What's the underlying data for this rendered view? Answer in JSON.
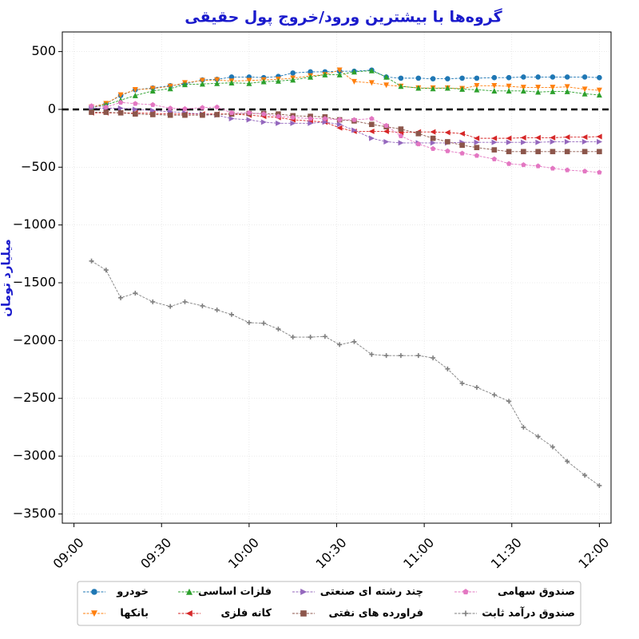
{
  "chart_data": {
    "type": "line",
    "title": "گروه‌ها با بیشترین ورود/خروج پول حقیقی",
    "y_label": "میلیارد تومان",
    "x": [
      "09:06",
      "09:11",
      "09:16",
      "09:21",
      "09:27",
      "09:33",
      "09:38",
      "09:44",
      "09:49",
      "09:54",
      "10:00",
      "10:05",
      "10:10",
      "10:15",
      "10:21",
      "10:26",
      "10:31",
      "10:36",
      "10:42",
      "10:47",
      "10:52",
      "10:58",
      "11:03",
      "11:08",
      "11:13",
      "11:18",
      "11:24",
      "11:29",
      "11:34",
      "11:39",
      "11:44",
      "11:49",
      "11:55",
      "12:00"
    ],
    "xlim": [
      "08:56",
      "12:04"
    ],
    "xticks": [
      "09:00",
      "09:30",
      "10:00",
      "10:30",
      "11:00",
      "11:30",
      "12:00"
    ],
    "ylim": [
      -3580,
      670
    ],
    "yticks": [
      {
        "value": -3500,
        "label": "−3500"
      },
      {
        "value": -3000,
        "label": "−3000"
      },
      {
        "value": -2500,
        "label": "−2500"
      },
      {
        "value": -2000,
        "label": "−2000"
      },
      {
        "value": -1500,
        "label": "−1500"
      },
      {
        "value": -1000,
        "label": "−1000"
      },
      {
        "value": -500,
        "label": "−500"
      },
      0,
      500
    ],
    "grid": true,
    "hline": 0,
    "legend": "lower center",
    "series": [
      {
        "name": "خودرو",
        "color": "#1f77b4",
        "marker": "circle",
        "values": [
          20,
          50,
          120,
          170,
          185,
          205,
          220,
          255,
          260,
          280,
          280,
          275,
          285,
          315,
          325,
          325,
          330,
          330,
          340,
          280,
          270,
          270,
          265,
          265,
          270,
          270,
          275,
          275,
          280,
          280,
          280,
          280,
          280,
          275
        ]
      },
      {
        "name": "بانکها",
        "color": "#ff7f0e",
        "marker": "triangle-down",
        "values": [
          20,
          50,
          125,
          170,
          180,
          200,
          230,
          250,
          255,
          245,
          250,
          255,
          260,
          270,
          290,
          300,
          340,
          240,
          230,
          210,
          200,
          185,
          185,
          185,
          180,
          205,
          205,
          200,
          190,
          190,
          190,
          195,
          175,
          165
        ]
      },
      {
        "name": "فلزات اساسی",
        "color": "#2ca02c",
        "marker": "triangle-up",
        "values": [
          15,
          40,
          80,
          120,
          160,
          180,
          215,
          220,
          225,
          230,
          225,
          240,
          245,
          255,
          280,
          300,
          300,
          325,
          335,
          280,
          200,
          185,
          180,
          185,
          175,
          170,
          160,
          160,
          160,
          150,
          155,
          155,
          135,
          125
        ]
      },
      {
        "name": "کانه فلزی",
        "color": "#d62728",
        "marker": "triangle-left",
        "values": [
          -30,
          -30,
          -30,
          -30,
          -35,
          -40,
          -40,
          -40,
          -40,
          -40,
          -50,
          -60,
          -70,
          -90,
          -100,
          -110,
          -160,
          -190,
          -190,
          -190,
          -200,
          -195,
          -195,
          -200,
          -210,
          -250,
          -250,
          -250,
          -245,
          -245,
          -245,
          -240,
          -240,
          -235
        ]
      },
      {
        "name": "چند رشته ای صنعتی",
        "color": "#9467bd",
        "marker": "triangle-right",
        "values": [
          10,
          10,
          10,
          0,
          -10,
          -20,
          -30,
          -40,
          -50,
          -80,
          -90,
          -110,
          -120,
          -120,
          -120,
          -110,
          -130,
          -180,
          -250,
          -280,
          -290,
          -290,
          -290,
          -290,
          -285,
          -285,
          -285,
          -285,
          -285,
          -285,
          -280,
          -280,
          -280,
          -280
        ]
      },
      {
        "name": "فراورده های نفتی",
        "color": "#8c564b",
        "marker": "square",
        "values": [
          -25,
          -25,
          -30,
          -40,
          -45,
          -50,
          -50,
          -50,
          -45,
          -40,
          -35,
          -35,
          -40,
          -55,
          -60,
          -65,
          -90,
          -100,
          -130,
          -150,
          -170,
          -210,
          -250,
          -280,
          -310,
          -330,
          -350,
          -365,
          -365,
          -365,
          -365,
          -365,
          -365,
          -365
        ]
      },
      {
        "name": "صندوق سهامی",
        "color": "#e377c2",
        "marker": "pentagon",
        "values": [
          30,
          20,
          60,
          50,
          40,
          10,
          5,
          15,
          20,
          -30,
          -30,
          -40,
          -60,
          -70,
          -80,
          -80,
          -90,
          -90,
          -80,
          -140,
          -230,
          -300,
          -340,
          -360,
          -380,
          -400,
          -430,
          -470,
          -480,
          -490,
          -510,
          -525,
          -535,
          -545
        ]
      },
      {
        "name": "صندوق درآمد ثابت",
        "color": "#7f7f7f",
        "marker": "plus",
        "values": [
          -1312,
          -1390,
          -1630,
          -1590,
          -1665,
          -1705,
          -1665,
          -1700,
          -1735,
          -1775,
          -1845,
          -1850,
          -1900,
          -1970,
          -1970,
          -1965,
          -2035,
          -2010,
          -2120,
          -2130,
          -2130,
          -2130,
          -2150,
          -2245,
          -2370,
          -2405,
          -2470,
          -2525,
          -2750,
          -2830,
          -2920,
          -3045,
          -3165,
          -3255
        ]
      }
    ]
  }
}
